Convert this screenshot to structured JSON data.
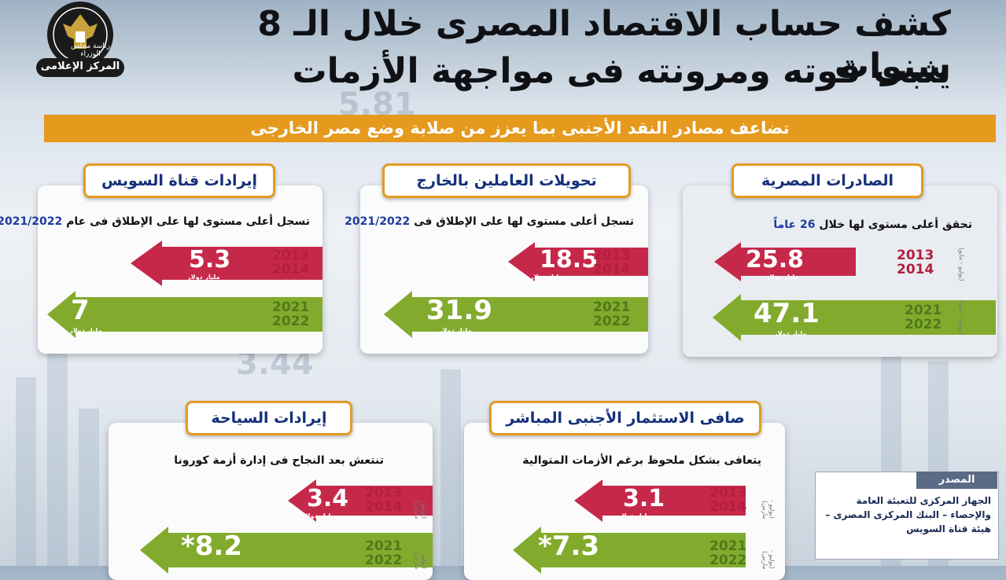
{
  "header": {
    "title_line1": "كشف حساب الاقتصاد المصرى خلال الـ 8 سنوات",
    "title_line2": "يثبت قوته ومرونته فى مواجهة الأزمات",
    "logo_text_top": "رئاسة مجلس الوزراء",
    "logo_text_bottom": "المركز الإعلامى"
  },
  "subtitle": "تضاعف مصادر النقد الأجنبى بما يعزز من صلابة وضع مصر الخارجى",
  "cards": {
    "exports": {
      "label": "الصادرات المصرية",
      "desc": "تحقق أعلى مستوى لها خلال",
      "desc_highlight": "26 عاماً",
      "red": {
        "value": "25.8",
        "unit": "مليار دولار",
        "year1": "2013",
        "year2": "2014",
        "note": "(يوليو - مايو)"
      },
      "green": {
        "value": "47.1",
        "unit": "مليار دولار",
        "year1": "2021",
        "year2": "2022",
        "note": "(يوليو - مايو)"
      }
    },
    "remittances": {
      "label": "تحويلات العاملين بالخارج",
      "desc": "تسجل أعلى مستوى لها على الإطلاق فى",
      "desc_highlight": "2021/2022",
      "red": {
        "value": "18.5",
        "unit": "مليار دولار",
        "year1": "2013",
        "year2": "2014"
      },
      "green": {
        "value": "31.9",
        "unit": "مليار دولار",
        "year1": "2021",
        "year2": "2022"
      }
    },
    "suez": {
      "label": "إيرادات قناة السويس",
      "desc": "تسجل أعلى مستوى لها على الإطلاق فى عام",
      "desc_highlight": "2021/2022",
      "red": {
        "value": "5.3",
        "unit": "مليار دولار",
        "year1": "2013",
        "year2": "2014"
      },
      "green": {
        "value": "7",
        "unit": "مليار دولار",
        "year1": "2021",
        "year2": "2022"
      }
    },
    "fdi": {
      "label": "صافى الاستثمار الأجنبى المباشر",
      "desc": "يتعافى بشكل ملحوظ برغم الأزمات المتوالية",
      "red": {
        "value": "3.1",
        "unit": "مليار دولار",
        "year1": "2013",
        "year2": "2014",
        "note": "(يوليو - مارس)"
      },
      "green": {
        "value": "*7.3",
        "year1": "2021",
        "year2": "2022",
        "note": "(يوليو - مارس)"
      }
    },
    "tourism": {
      "label": "إيرادات السياحة",
      "desc": "تنتعش بعد النجاح فى إدارة أزمة كورونا",
      "red": {
        "value": "3.4",
        "unit": "مليار دولار",
        "year1": "2013",
        "year2": "2014",
        "note": "(يوليو - مارس)"
      },
      "green": {
        "value": "*8.2",
        "year1": "2021",
        "year2": "2022",
        "note": "(يوليو - مارس)"
      }
    }
  },
  "source": {
    "heading": "المصدر",
    "text": "الجهاز المركزى للتعبئة العامة والإحصاء – البنك المركزى المصرى – هيئة قناة السويس"
  },
  "colors": {
    "red": "#c6284a",
    "green": "#82ab2d",
    "orange": "#e59a1d",
    "navy": "#15307a"
  }
}
